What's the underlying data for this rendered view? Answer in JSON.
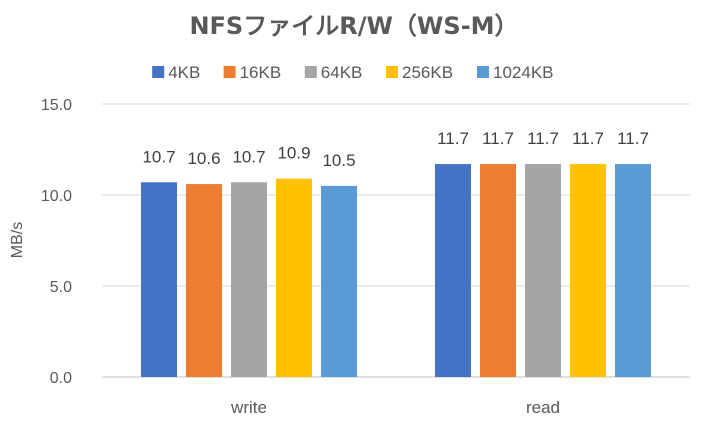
{
  "chart_data": {
    "type": "bar",
    "title": "NFSファイルR/W（WS-M）",
    "xlabel": "",
    "ylabel": "MB/s",
    "ylim": [
      0,
      15
    ],
    "yticks": [
      "0.0",
      "5.0",
      "10.0",
      "15.0"
    ],
    "grid": true,
    "legend_position": "top",
    "categories": [
      "write",
      "read"
    ],
    "series": [
      {
        "name": "4KB",
        "color": "#4472C4",
        "values": [
          10.7,
          11.7
        ]
      },
      {
        "name": "16KB",
        "color": "#ED7D31",
        "values": [
          10.6,
          11.7
        ]
      },
      {
        "name": "64KB",
        "color": "#A5A5A5",
        "values": [
          10.7,
          11.7
        ]
      },
      {
        "name": "256KB",
        "color": "#FFC000",
        "values": [
          10.9,
          11.7
        ]
      },
      {
        "name": "1024KB",
        "color": "#5B9BD5",
        "values": [
          10.5,
          11.7
        ]
      }
    ]
  }
}
